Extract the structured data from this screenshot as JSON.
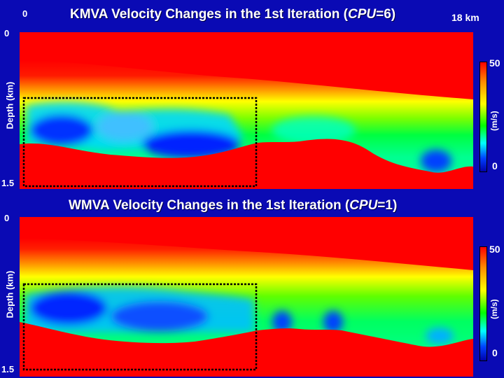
{
  "top": {
    "title_prefix": "KMVA Velocity Changes in the 1st Iteration (",
    "title_italic": "CPU",
    "title_suffix": "=6)",
    "x_start": "0",
    "x_end": "18 km",
    "y_top": "0",
    "y_bottom": "1.5",
    "y_label": "Depth (km)",
    "cb_max": "50",
    "cb_min": "0",
    "cb_unit": "(m/s)"
  },
  "bottom": {
    "title_prefix": "WMVA Velocity Changes in the 1st Iteration (",
    "title_italic": "CPU",
    "title_suffix": "=1)",
    "y_top": "0",
    "y_bottom": "1.5",
    "y_label": "Depth (km)",
    "cb_max": "50",
    "cb_min": "0",
    "cb_unit": "(m/s)"
  },
  "colors": {
    "background": "#0a0ab4",
    "red": "#ff0000",
    "orange": "#ff8c00",
    "yellow": "#ffff00",
    "green": "#00ff00",
    "cyan": "#00ffff",
    "blue": "#0022ff"
  }
}
